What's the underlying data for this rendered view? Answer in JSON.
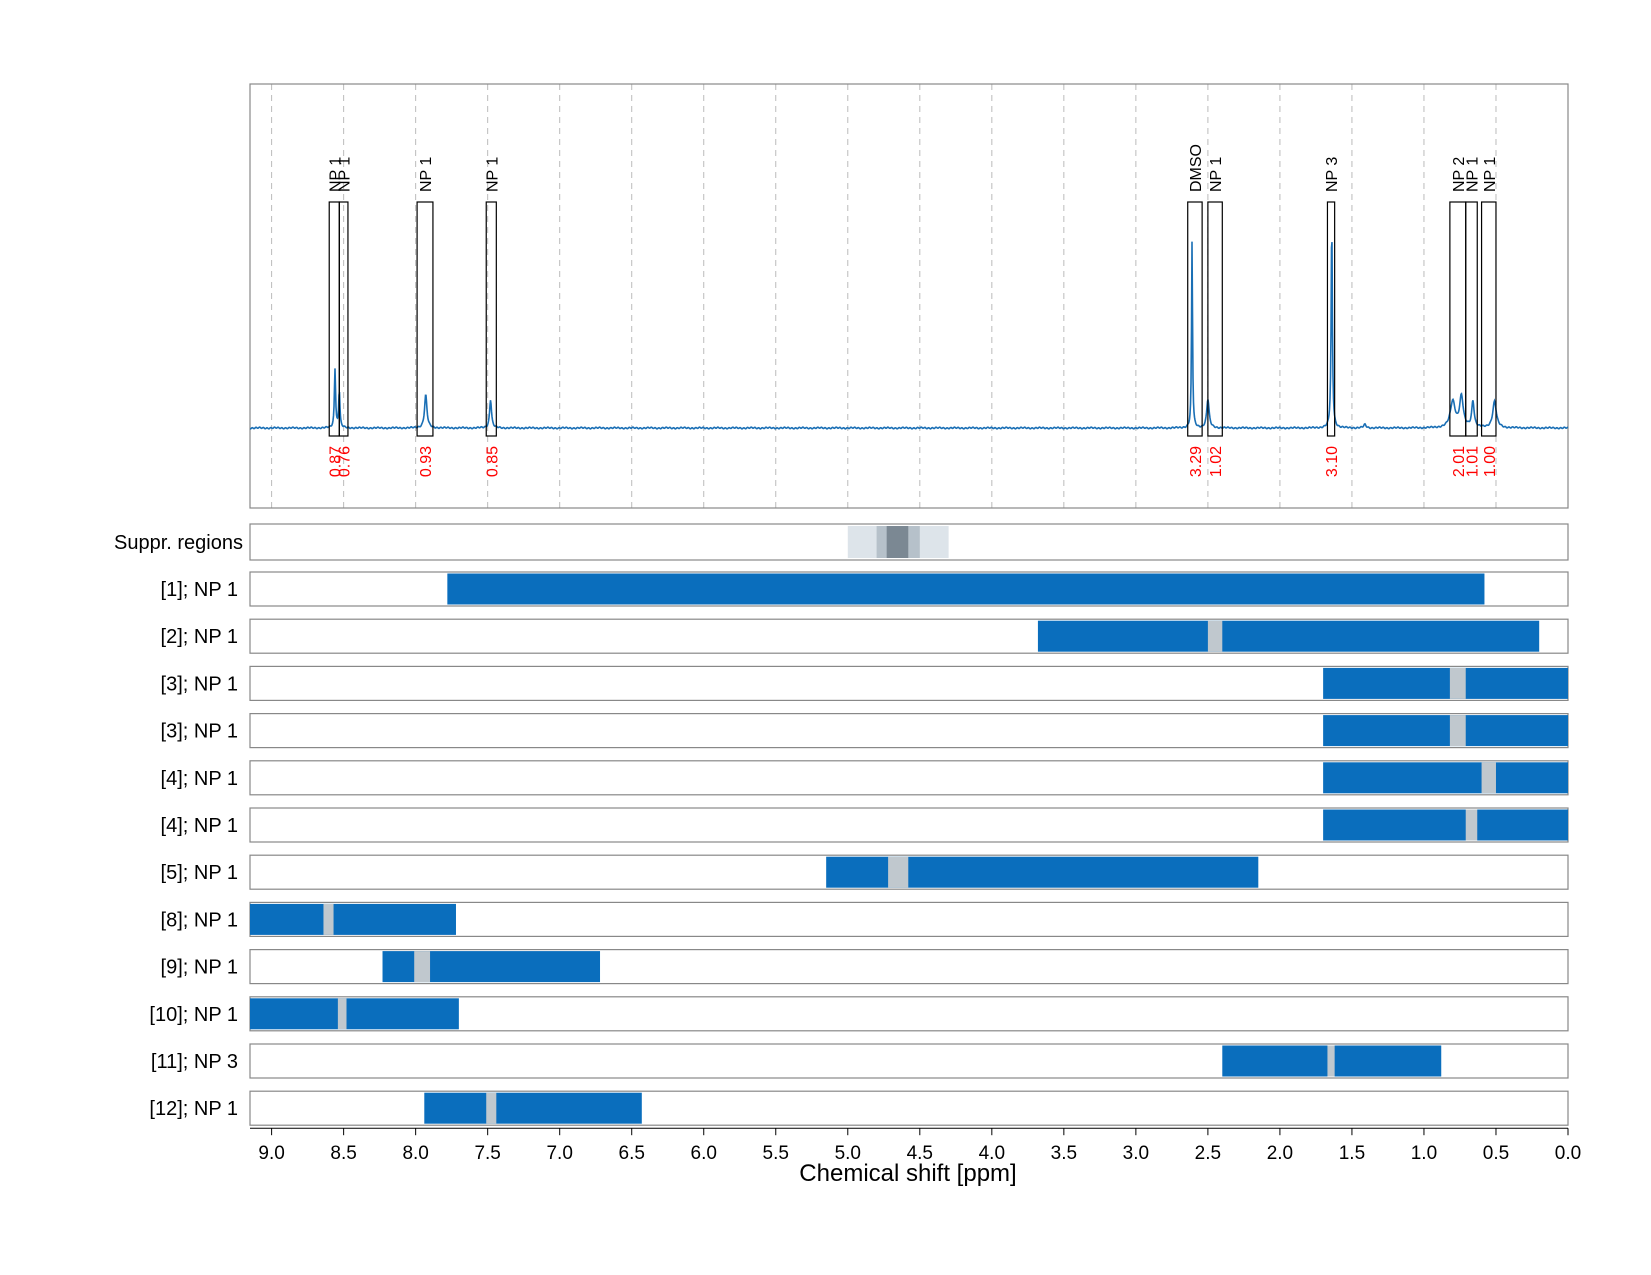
{
  "chart_data": {
    "type": "line",
    "xlabel": "Chemical shift [ppm]",
    "xlim": [
      9.15,
      0.0
    ],
    "x_ticks": [
      "9.0",
      "8.5",
      "8.0",
      "7.5",
      "7.0",
      "6.5",
      "6.0",
      "5.5",
      "5.0",
      "4.5",
      "4.0",
      "3.5",
      "3.0",
      "2.5",
      "2.0",
      "1.5",
      "1.0",
      "0.5",
      "0.0"
    ],
    "grid": "vertical dashed",
    "colors": {
      "spectrum": "#1a6fb5",
      "bar": "#0a6ebd",
      "gap": "#c0c8ce",
      "integral_label": "#ff0000",
      "suppr_light": "#dde4ea",
      "suppr_mid": "#b6c1ca",
      "suppr_dark": "#7b8893"
    },
    "spectrum_peaks": [
      {
        "ppm": 8.56,
        "height": 0.27,
        "width": 0.005
      },
      {
        "ppm": 8.53,
        "height": 0.17,
        "width": 0.005
      },
      {
        "ppm": 7.93,
        "height": 0.15,
        "width": 0.01
      },
      {
        "ppm": 7.48,
        "height": 0.13,
        "width": 0.008
      },
      {
        "ppm": 2.61,
        "height": 0.85,
        "width": 0.004
      },
      {
        "ppm": 2.5,
        "height": 0.13,
        "width": 0.01
      },
      {
        "ppm": 1.64,
        "height": 0.93,
        "width": 0.005
      },
      {
        "ppm": 1.41,
        "height": 0.015,
        "width": 0.01
      },
      {
        "ppm": 0.8,
        "height": 0.12,
        "width": 0.02
      },
      {
        "ppm": 0.74,
        "height": 0.14,
        "width": 0.015
      },
      {
        "ppm": 0.66,
        "height": 0.12,
        "width": 0.01
      },
      {
        "ppm": 0.51,
        "height": 0.12,
        "width": 0.015
      }
    ],
    "annotations": [
      {
        "label": "NP 1",
        "start": 8.6,
        "end": 8.53,
        "integral": "0.87"
      },
      {
        "label": "NP 1",
        "start": 8.53,
        "end": 8.47,
        "integral": "0.76"
      },
      {
        "label": "NP 1",
        "start": 7.99,
        "end": 7.88,
        "integral": "0.93"
      },
      {
        "label": "NP 1",
        "start": 7.51,
        "end": 7.44,
        "integral": "0.85"
      },
      {
        "label": "DMSO",
        "start": 2.64,
        "end": 2.54,
        "integral": "3.29"
      },
      {
        "label": "NP 1",
        "start": 2.5,
        "end": 2.4,
        "integral": "1.02"
      },
      {
        "label": "NP 3",
        "start": 1.67,
        "end": 1.62,
        "integral": "3.10"
      },
      {
        "label": "NP 2",
        "start": 0.82,
        "end": 0.71,
        "integral": "2.01"
      },
      {
        "label": "NP 1",
        "start": 0.71,
        "end": 0.63,
        "integral": "1.01"
      },
      {
        "label": "NP 1",
        "start": 0.6,
        "end": 0.5,
        "integral": "1.00"
      }
    ],
    "suppression": {
      "label": "Suppr. regions",
      "bands": [
        {
          "start": 5.0,
          "end": 4.3,
          "shade": "light"
        },
        {
          "start": 4.8,
          "end": 4.5,
          "shade": "mid"
        },
        {
          "start": 4.73,
          "end": 4.58,
          "shade": "dark"
        }
      ]
    },
    "tracks": [
      {
        "label": "[1]; NP 1",
        "start": 7.78,
        "end": 0.58,
        "gaps": []
      },
      {
        "label": "[2]; NP 1",
        "start": 3.68,
        "end": 0.2,
        "gaps": [
          [
            2.5,
            2.4
          ]
        ]
      },
      {
        "label": "[3]; NP 1",
        "start": 1.7,
        "end": 0.0,
        "gaps": [
          [
            0.82,
            0.71
          ]
        ]
      },
      {
        "label": "[3]; NP 1",
        "start": 1.7,
        "end": 0.0,
        "gaps": [
          [
            0.82,
            0.71
          ]
        ]
      },
      {
        "label": "[4]; NP 1",
        "start": 1.7,
        "end": 0.0,
        "gaps": [
          [
            0.6,
            0.5
          ]
        ]
      },
      {
        "label": "[4]; NP 1",
        "start": 1.7,
        "end": 0.0,
        "gaps": [
          [
            0.71,
            0.63
          ]
        ]
      },
      {
        "label": "[5]; NP 1",
        "start": 5.15,
        "end": 2.15,
        "gaps": [
          [
            4.72,
            4.58
          ]
        ]
      },
      {
        "label": "[8]; NP 1",
        "start": 9.15,
        "end": 7.72,
        "gaps": [
          [
            8.64,
            8.57
          ]
        ]
      },
      {
        "label": "[9]; NP 1",
        "start": 8.23,
        "end": 6.72,
        "gaps": [
          [
            8.01,
            7.9
          ]
        ]
      },
      {
        "label": "[10]; NP 1",
        "start": 9.15,
        "end": 7.7,
        "gaps": [
          [
            8.54,
            8.48
          ]
        ]
      },
      {
        "label": "[11]; NP 3",
        "start": 2.4,
        "end": 0.88,
        "gaps": [
          [
            1.67,
            1.62
          ]
        ]
      },
      {
        "label": "[12]; NP 1",
        "start": 7.94,
        "end": 6.43,
        "gaps": [
          [
            7.51,
            7.44
          ]
        ]
      }
    ]
  }
}
